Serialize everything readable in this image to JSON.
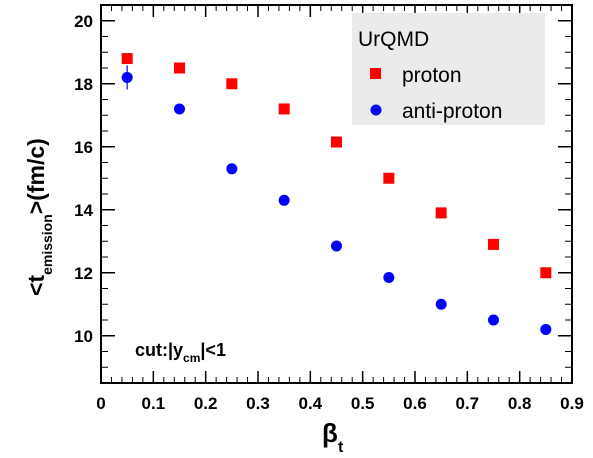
{
  "chart_data": {
    "type": "scatter",
    "x_axis_label": "β",
    "x_axis_label_sub": "t",
    "y_axis_label_prefix": "<t",
    "y_axis_label_sub": "emission",
    "y_axis_label_suffix": ">(fm/c)",
    "xlim": [
      0,
      0.9
    ],
    "ylim": [
      8.5,
      20.5
    ],
    "x_ticks": [
      0,
      0.1,
      0.2,
      0.3,
      0.4,
      0.5,
      0.6,
      0.7,
      0.8,
      0.9
    ],
    "x_tick_labels": [
      "0",
      "0.1",
      "0.2",
      "0.3",
      "0.4",
      "0.5",
      "0.6",
      "0.7",
      "0.8",
      "0.9"
    ],
    "y_ticks": [
      10,
      12,
      14,
      16,
      18,
      20
    ],
    "y_tick_labels": [
      "10",
      "12",
      "14",
      "16",
      "18",
      "20"
    ],
    "grid": false,
    "legend": {
      "title": "UrQMD",
      "placement": "top-right"
    },
    "annotation": {
      "prefix": "cut:|y",
      "sub": "cm",
      "suffix": "|<1"
    },
    "series": [
      {
        "name": "proton",
        "marker": "square",
        "color": "#ff0000",
        "x": [
          0.05,
          0.15,
          0.25,
          0.35,
          0.45,
          0.55,
          0.65,
          0.75,
          0.85
        ],
        "y": [
          18.8,
          18.5,
          18.0,
          17.2,
          16.15,
          15.0,
          13.9,
          12.9,
          12.0
        ]
      },
      {
        "name": "anti-proton",
        "marker": "circle",
        "color": "#0000ff",
        "x": [
          0.05,
          0.15,
          0.25,
          0.35,
          0.45,
          0.55,
          0.65,
          0.75,
          0.85
        ],
        "y": [
          18.2,
          17.2,
          15.3,
          14.3,
          12.85,
          11.85,
          11.0,
          10.5,
          10.2
        ]
      }
    ]
  }
}
